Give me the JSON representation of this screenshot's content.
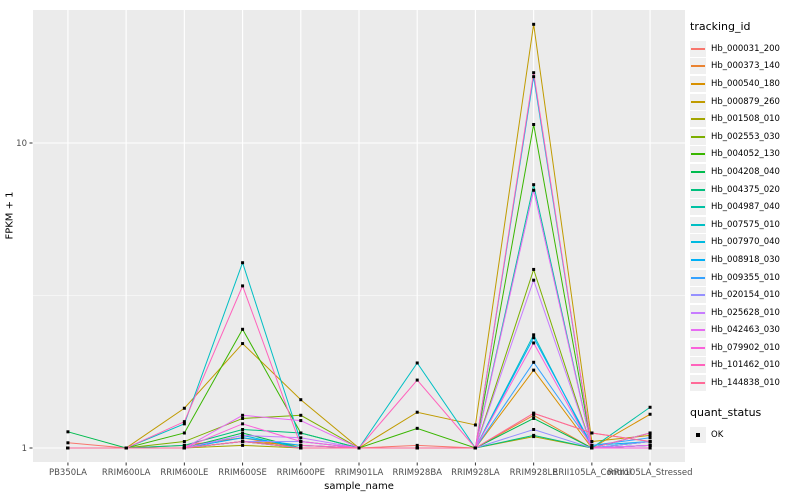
{
  "figure": {
    "x_axis_title": "sample_name",
    "y_axis_title": "FPKM + 1"
  },
  "chart_data": {
    "type": "line",
    "title": "",
    "xlabel": "sample_name",
    "ylabel": "FPKM + 1",
    "y_scale": "log10",
    "y_ticks": [
      1,
      10
    ],
    "y_tick_labels": [
      "1",
      "10"
    ],
    "y_minor_breaks": [
      3.1623
    ],
    "ylim_log10": [
      -0.046,
      1.437
    ],
    "grid": true,
    "panel_bg": "#EBEBEB",
    "grid_color": "#FFFFFF",
    "tick_color": "#333333",
    "point_color": "#000000",
    "point_shape": "square",
    "legend_title": "tracking_id",
    "legend_position": "right",
    "quant_legend": {
      "title": "quant_status",
      "items": [
        "OK"
      ]
    },
    "categories": [
      "PB350LA",
      "RRIM600LA",
      "RRIM600LE",
      "RRIM600SE",
      "RRIM600PE",
      "RRIM901LA",
      "RRIM928BA",
      "RRIM928LA",
      "RRIM928LE",
      "RRII105LA_Control",
      "RRII105LA_Stressed"
    ],
    "series": [
      {
        "name": "Hb_000031_200",
        "color": "#F8766D",
        "values": [
          1.04,
          1.0,
          1.0,
          1.05,
          1.0,
          1.0,
          1.02,
          1.0,
          1.3,
          1.12,
          1.05
        ]
      },
      {
        "name": "Hb_000373_140",
        "color": "#EA8331",
        "values": [
          1.0,
          1.0,
          1.02,
          1.08,
          1.0,
          1.0,
          1.0,
          1.0,
          1.28,
          1.0,
          1.02
        ]
      },
      {
        "name": "Hb_000540_180",
        "color": "#D89000",
        "values": [
          1.0,
          1.0,
          1.0,
          1.05,
          1.02,
          1.0,
          1.0,
          1.0,
          1.8,
          1.0,
          1.29
        ]
      },
      {
        "name": "Hb_000879_260",
        "color": "#C09B00",
        "values": [
          1.0,
          1.0,
          1.35,
          2.2,
          1.44,
          1.0,
          1.31,
          1.19,
          24.5,
          1.05,
          1.1
        ]
      },
      {
        "name": "Hb_001508_010",
        "color": "#A3A500",
        "values": [
          1.0,
          1.0,
          1.0,
          1.02,
          1.0,
          1.0,
          1.0,
          1.0,
          1.09,
          1.0,
          1.0
        ]
      },
      {
        "name": "Hb_002553_030",
        "color": "#7CAE00",
        "values": [
          1.0,
          1.0,
          1.05,
          1.25,
          1.28,
          1.0,
          1.0,
          1.0,
          3.85,
          1.0,
          1.02
        ]
      },
      {
        "name": "Hb_004052_130",
        "color": "#39B600",
        "values": [
          1.0,
          1.0,
          1.12,
          2.45,
          1.12,
          1.0,
          1.16,
          1.0,
          11.5,
          1.0,
          1.02
        ]
      },
      {
        "name": "Hb_004208_040",
        "color": "#00BB4E",
        "values": [
          1.13,
          1.0,
          1.0,
          1.12,
          1.0,
          1.0,
          1.0,
          1.0,
          1.25,
          1.0,
          1.05
        ]
      },
      {
        "name": "Hb_004375_020",
        "color": "#00BF7D",
        "values": [
          1.0,
          1.0,
          1.02,
          1.15,
          1.12,
          1.0,
          1.0,
          1.0,
          1.1,
          1.0,
          1.12
        ]
      },
      {
        "name": "Hb_004987_040",
        "color": "#00C1A3",
        "values": [
          1.0,
          1.0,
          1.0,
          1.05,
          1.0,
          1.0,
          1.0,
          1.0,
          7.3,
          1.0,
          1.36
        ]
      },
      {
        "name": "Hb_007575_010",
        "color": "#00BFC4",
        "values": [
          1.0,
          1.0,
          1.2,
          4.05,
          1.05,
          1.0,
          1.9,
          1.0,
          2.35,
          1.0,
          1.05
        ]
      },
      {
        "name": "Hb_007970_040",
        "color": "#00BAE0",
        "values": [
          1.0,
          1.0,
          1.0,
          1.1,
          1.0,
          1.0,
          1.0,
          1.0,
          16.5,
          1.0,
          1.02
        ]
      },
      {
        "name": "Hb_008918_030",
        "color": "#00B0F6",
        "values": [
          1.0,
          1.0,
          1.0,
          1.08,
          1.02,
          1.0,
          1.0,
          1.0,
          2.3,
          1.02,
          1.05
        ]
      },
      {
        "name": "Hb_009355_010",
        "color": "#35A2FF",
        "values": [
          1.0,
          1.0,
          1.0,
          1.05,
          1.0,
          1.0,
          1.0,
          1.0,
          1.91,
          1.02,
          1.08
        ]
      },
      {
        "name": "Hb_020154_010",
        "color": "#9590FF",
        "values": [
          1.0,
          1.0,
          1.0,
          1.05,
          1.05,
          1.0,
          1.0,
          1.0,
          1.15,
          1.0,
          1.05
        ]
      },
      {
        "name": "Hb_025628_010",
        "color": "#C77CFF",
        "values": [
          1.0,
          1.0,
          1.0,
          1.1,
          1.08,
          1.0,
          1.0,
          1.0,
          3.55,
          1.0,
          1.02
        ]
      },
      {
        "name": "Hb_042463_030",
        "color": "#E76BF3",
        "values": [
          1.0,
          1.0,
          1.0,
          1.28,
          1.23,
          1.0,
          1.0,
          1.0,
          7.0,
          1.0,
          1.02
        ]
      },
      {
        "name": "Hb_079902_010",
        "color": "#FA62DB",
        "values": [
          1.0,
          1.0,
          1.0,
          1.2,
          1.05,
          1.0,
          1.0,
          1.0,
          2.21,
          1.0,
          1.0
        ]
      },
      {
        "name": "Hb_101462_010",
        "color": "#FF62BC",
        "values": [
          1.0,
          1.0,
          1.22,
          3.4,
          1.02,
          1.0,
          1.67,
          1.0,
          17.0,
          1.0,
          1.12
        ]
      },
      {
        "name": "Hb_144838_010",
        "color": "#FF6A98",
        "values": [
          1.0,
          1.0,
          1.0,
          1.05,
          1.0,
          1.0,
          1.0,
          1.0,
          1.3,
          1.12,
          1.05
        ]
      }
    ]
  }
}
